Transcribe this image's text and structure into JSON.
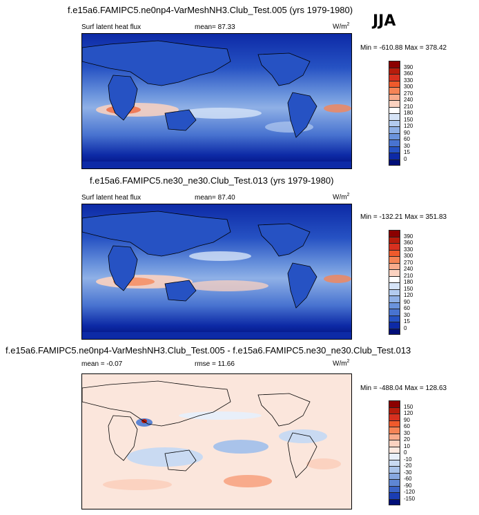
{
  "season": "JJA",
  "panels": [
    {
      "id": "model",
      "title": "f.e15a6.FAMIPC5.ne0np4-VarMeshNH3.Club_Test.005 (yrs 1979-1980)",
      "left_label": "Surf latent heat flux",
      "mid_label": "mean=  87.33",
      "units": "W/m",
      "units_exp": "2",
      "minmax": "Min = -610.88 Max = 378.42",
      "kind": "abs",
      "levels": [
        "390",
        "360",
        "330",
        "300",
        "270",
        "240",
        "210",
        "180",
        "150",
        "120",
        "90",
        "60",
        "30",
        "15",
        "0"
      ]
    },
    {
      "id": "reference",
      "title": "f.e15a6.FAMIPC5.ne30_ne30.Club_Test.013 (yrs 1979-1980)",
      "left_label": "Surf latent heat flux",
      "mid_label": "mean=  87.40",
      "units": "W/m",
      "units_exp": "2",
      "minmax": "Min = -132.21 Max = 351.83",
      "kind": "abs",
      "levels": [
        "390",
        "360",
        "330",
        "300",
        "270",
        "240",
        "210",
        "180",
        "150",
        "120",
        "90",
        "60",
        "30",
        "15",
        "0"
      ]
    },
    {
      "id": "difference",
      "title": "f.e15a6.FAMIPC5.ne0np4-VarMeshNH3.Club_Test.005 - f.e15a6.FAMIPC5.ne30_ne30.Club_Test.013",
      "left_label": "mean =  -0.07",
      "mid_label": "rmse =  11.66",
      "units": "W/m",
      "units_exp": "2",
      "minmax": "Min = -488.04 Max = 128.63",
      "kind": "diff",
      "levels": [
        "150",
        "120",
        "90",
        "60",
        "30",
        "20",
        "10",
        "0",
        "-10",
        "-20",
        "-30",
        "-60",
        "-90",
        "-120",
        "-150"
      ]
    }
  ],
  "colors": {
    "abs": [
      "#8b0000",
      "#b71c0c",
      "#d7301f",
      "#ef5a2c",
      "#f58456",
      "#f8ab8c",
      "#fbd2c0",
      "#ffffff",
      "#d6e4f7",
      "#b3cbef",
      "#8fb0e6",
      "#6a93dc",
      "#4873d0",
      "#2652c3",
      "#0d2aa6",
      "#000e78"
    ],
    "diff": [
      "#8b0000",
      "#b71c0c",
      "#d7301f",
      "#ef5a2c",
      "#f58456",
      "#f8ab8c",
      "#fbd2c0",
      "#fde9e0",
      "#e8eff9",
      "#c9daf2",
      "#a9c3ea",
      "#86a7e0",
      "#5e86d4",
      "#3a63c7",
      "#1a3db4",
      "#000e78"
    ]
  },
  "chart_data": [
    {
      "type": "heatmap",
      "title": "f.e15a6.FAMIPC5.ne0np4-VarMeshNH3.Club_Test.005 (yrs 1979-1980)",
      "variable": "Surf latent heat flux",
      "units": "W/m2",
      "season": "JJA",
      "mean": 87.33,
      "min": -610.88,
      "max": 378.42,
      "contour_levels": [
        0,
        15,
        30,
        60,
        90,
        120,
        150,
        180,
        210,
        240,
        270,
        300,
        330,
        360,
        390
      ]
    },
    {
      "type": "heatmap",
      "title": "f.e15a6.FAMIPC5.ne30_ne30.Club_Test.013 (yrs 1979-1980)",
      "variable": "Surf latent heat flux",
      "units": "W/m2",
      "season": "JJA",
      "mean": 87.4,
      "min": -132.21,
      "max": 351.83,
      "contour_levels": [
        0,
        15,
        30,
        60,
        90,
        120,
        150,
        180,
        210,
        240,
        270,
        300,
        330,
        360,
        390
      ]
    },
    {
      "type": "heatmap",
      "title": "f.e15a6.FAMIPC5.ne0np4-VarMeshNH3.Club_Test.005 - f.e15a6.FAMIPC5.ne30_ne30.Club_Test.013",
      "units": "W/m2",
      "season": "JJA",
      "mean": -0.07,
      "rmse": 11.66,
      "min": -488.04,
      "max": 128.63,
      "contour_levels": [
        -150,
        -120,
        -90,
        -60,
        -30,
        -20,
        -10,
        0,
        10,
        20,
        30,
        60,
        90,
        120,
        150
      ]
    }
  ]
}
